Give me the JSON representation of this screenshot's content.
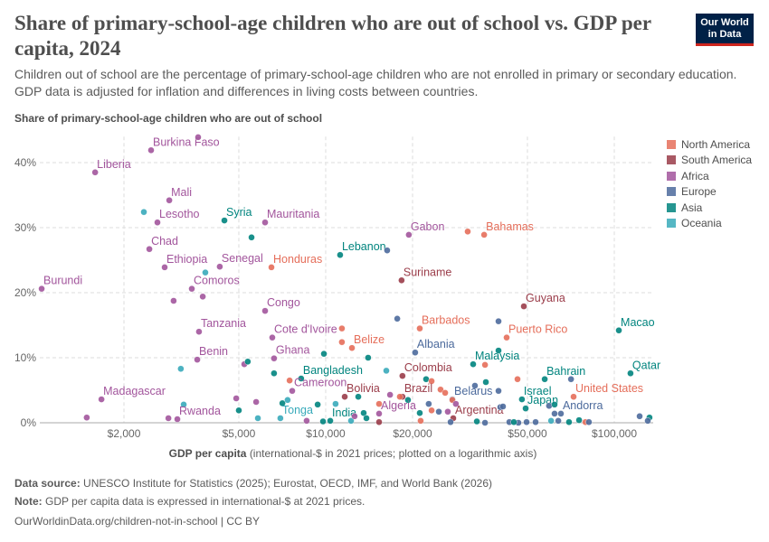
{
  "header": {
    "title": "Share of primary-school-age children who are out of school vs. GDP per capita, 2024",
    "subtitle": "Children out of school are the percentage of primary-school-age children who are not enrolled in primary or secondary education. GDP data is adjusted for inflation and differences in living costs between countries.",
    "logo": "Our World in Data"
  },
  "footer": {
    "source_label": "Data source:",
    "source": "UNESCO Institute for Statistics (2025); Eurostat, OECD, IMF, and World Bank (2026)",
    "note_label": "Note:",
    "note": "GDP per capita data is expressed in international-$ at 2021 prices.",
    "url": "OurWorldinData.org/children-not-in-school | CC BY"
  },
  "chart_data": {
    "type": "scatter",
    "title": "Share of primary-school-age children who are out of school vs. GDP per capita, 2024",
    "ylabel": "Share of primary-school-age children who are out of school",
    "xlabel_bold": "GDP per capita",
    "xlabel_rest": "(international-$ in 2021 prices; plotted on a logarithmic axis)",
    "xscale": "log",
    "xlim": [
      1000,
      135000
    ],
    "ylim": [
      0,
      44
    ],
    "xticks": [
      {
        "v": 2000,
        "l": "$2,000"
      },
      {
        "v": 5000,
        "l": "$5,000"
      },
      {
        "v": 10000,
        "l": "$10,000"
      },
      {
        "v": 20000,
        "l": "$20,000"
      },
      {
        "v": 50000,
        "l": "$50,000"
      },
      {
        "v": 100000,
        "l": "$100,000"
      }
    ],
    "yticks": [
      {
        "v": 0,
        "l": "0%"
      },
      {
        "v": 10,
        "l": "10%"
      },
      {
        "v": 20,
        "l": "20%"
      },
      {
        "v": 30,
        "l": "30%"
      },
      {
        "v": 40,
        "l": "40%"
      }
    ],
    "grid": true,
    "legend_position": "right",
    "regions": [
      {
        "name": "North America",
        "color": "#e56e5a"
      },
      {
        "name": "South America",
        "color": "#9a3c49"
      },
      {
        "name": "Africa",
        "color": "#a2559c"
      },
      {
        "name": "Europe",
        "color": "#4c6a9c"
      },
      {
        "name": "Asia",
        "color": "#00847e"
      },
      {
        "name": "Oceania",
        "color": "#38aaba"
      }
    ],
    "points": [
      {
        "label": "Burkina Faso",
        "region": "Africa",
        "gdp": 2483,
        "share": 41.9
      },
      {
        "label": "",
        "region": "Africa",
        "gdp": 3614,
        "share": 43.9
      },
      {
        "label": "Liberia",
        "region": "Africa",
        "gdp": 1589,
        "share": 38.5
      },
      {
        "label": "Mali",
        "region": "Africa",
        "gdp": 2871,
        "share": 34.2
      },
      {
        "label": "Lesotho",
        "region": "Africa",
        "gdp": 2612,
        "share": 30.8
      },
      {
        "label": "",
        "region": "Oceania",
        "gdp": 2344,
        "share": 32.4
      },
      {
        "label": "Syria",
        "region": "Asia",
        "gdp": 4457,
        "share": 31.1
      },
      {
        "label": "Mauritania",
        "region": "Africa",
        "gdp": 6166,
        "share": 30.8
      },
      {
        "label": "",
        "region": "Asia",
        "gdp": 5534,
        "share": 28.5
      },
      {
        "label": "Chad",
        "region": "Africa",
        "gdp": 2449,
        "share": 26.7
      },
      {
        "label": "Ethiopia",
        "region": "Africa",
        "gdp": 2767,
        "share": 23.9
      },
      {
        "label": "Senegal",
        "region": "Africa",
        "gdp": 4295,
        "share": 24.0
      },
      {
        "label": "Honduras",
        "region": "North America",
        "gdp": 6486,
        "share": 23.9
      },
      {
        "label": "",
        "region": "Oceania",
        "gdp": 3828,
        "share": 23.1
      },
      {
        "label": "Burundi",
        "region": "Africa",
        "gdp": 1037,
        "share": 20.6
      },
      {
        "label": "Comoros",
        "region": "Africa",
        "gdp": 3436,
        "share": 20.6
      },
      {
        "label": "",
        "region": "Africa",
        "gdp": 2972,
        "share": 18.75
      },
      {
        "label": "",
        "region": "Africa",
        "gdp": 3750,
        "share": 19.4
      },
      {
        "label": "Congo",
        "region": "Africa",
        "gdp": 6166,
        "share": 17.2
      },
      {
        "label": "Tanzania",
        "region": "Africa",
        "gdp": 3639,
        "share": 14.0
      },
      {
        "label": "Cote d'Ivoire",
        "region": "Africa",
        "gdp": 6531,
        "share": 13.1
      },
      {
        "label": "Benin",
        "region": "Africa",
        "gdp": 3589,
        "share": 9.7
      },
      {
        "label": "Ghana",
        "region": "Africa",
        "gdp": 6622,
        "share": 9.9
      },
      {
        "label": "",
        "region": "Oceania",
        "gdp": 3148,
        "share": 8.3
      },
      {
        "label": "",
        "region": "Africa",
        "gdp": 5224,
        "share": 9.0
      },
      {
        "label": "",
        "region": "Asia",
        "gdp": 5370,
        "share": 9.4
      },
      {
        "label": "",
        "region": "Asia",
        "gdp": 6622,
        "share": 7.6
      },
      {
        "label": "",
        "region": "North America",
        "gdp": 7499,
        "share": 6.5
      },
      {
        "label": "Bangladesh",
        "region": "Asia",
        "gdp": 8222,
        "share": 6.8
      },
      {
        "label": "Cameroon",
        "region": "Africa",
        "gdp": 7656,
        "share": 4.9
      },
      {
        "label": "",
        "region": "Africa",
        "gdp": 4898,
        "share": 3.75
      },
      {
        "label": "",
        "region": "Africa",
        "gdp": 5741,
        "share": 3.2
      },
      {
        "label": "",
        "region": "Asia",
        "gdp": 7079,
        "share": 3.0
      },
      {
        "label": "",
        "region": "Oceania",
        "gdp": 7379,
        "share": 3.5
      },
      {
        "label": "Madagascar",
        "region": "Africa",
        "gdp": 1671,
        "share": 3.6
      },
      {
        "label": "",
        "region": "Africa",
        "gdp": 1486,
        "share": 0.8
      },
      {
        "label": "",
        "region": "Oceania",
        "gdp": 3221,
        "share": 2.8
      },
      {
        "label": "Rwanda",
        "region": "Africa",
        "gdp": 3062,
        "share": 0.55
      },
      {
        "label": "",
        "region": "Africa",
        "gdp": 2851,
        "share": 0.7
      },
      {
        "label": "",
        "region": "Asia",
        "gdp": 5000,
        "share": 1.9
      },
      {
        "label": "",
        "region": "Oceania",
        "gdp": 5821,
        "share": 0.7
      },
      {
        "label": "Tonga",
        "region": "Oceania",
        "gdp": 6966,
        "share": 0.7
      },
      {
        "label": "",
        "region": "Africa",
        "gdp": 8590,
        "share": 0.3
      },
      {
        "label": "Macao",
        "region": "Asia",
        "gdp": 103700,
        "share": 14.2
      },
      {
        "label": "Qatar",
        "region": "Asia",
        "gdp": 113800,
        "share": 7.6
      },
      {
        "label": "Guyana",
        "region": "South America",
        "gdp": 48600,
        "share": 17.9
      },
      {
        "label": "Puerto Rico",
        "region": "North America",
        "gdp": 42360,
        "share": 13.1
      },
      {
        "label": "",
        "region": "Europe",
        "gdp": 39700,
        "share": 15.6
      },
      {
        "label": "Barbados",
        "region": "North America",
        "gdp": 21180,
        "share": 14.5
      },
      {
        "label": "",
        "region": "Europe",
        "gdp": 17700,
        "share": 16.0
      },
      {
        "label": "Albania",
        "region": "Europe",
        "gdp": 20420,
        "share": 10.8
      },
      {
        "label": "Belize",
        "region": "North America",
        "gdp": 12330,
        "share": 11.5
      },
      {
        "label": "",
        "region": "North America",
        "gdp": 11380,
        "share": 14.5
      },
      {
        "label": "",
        "region": "North America",
        "gdp": 11380,
        "share": 12.4
      },
      {
        "label": "",
        "region": "Asia",
        "gdp": 14030,
        "share": 10.0
      },
      {
        "label": "",
        "region": "Asia",
        "gdp": 9860,
        "share": 10.6
      },
      {
        "label": "Malaysia",
        "region": "Asia",
        "gdp": 32430,
        "share": 9.0
      },
      {
        "label": "",
        "region": "North America",
        "gdp": 35650,
        "share": 8.9
      },
      {
        "label": "",
        "region": "Asia",
        "gdp": 39700,
        "share": 11.1
      },
      {
        "label": "Colombia",
        "region": "South America",
        "gdp": 18450,
        "share": 7.2
      },
      {
        "label": "",
        "region": "Oceania",
        "gdp": 16220,
        "share": 8.0
      },
      {
        "label": "Bahrain",
        "region": "Asia",
        "gdp": 57400,
        "share": 6.7
      },
      {
        "label": "",
        "region": "Europe",
        "gdp": 70800,
        "share": 6.7
      },
      {
        "label": "",
        "region": "North America",
        "gdp": 46200,
        "share": 6.7
      },
      {
        "label": "",
        "region": "Asia",
        "gdp": 35890,
        "share": 6.25
      },
      {
        "label": "",
        "region": "Europe",
        "gdp": 32890,
        "share": 5.7
      },
      {
        "label": "",
        "region": "Asia",
        "gdp": 22280,
        "share": 6.7
      },
      {
        "label": "",
        "region": "North America",
        "gdp": 23280,
        "share": 6.4
      },
      {
        "label": "Israel",
        "region": "Asia",
        "gdp": 47860,
        "share": 3.6
      },
      {
        "label": "United States",
        "region": "North America",
        "gdp": 72270,
        "share": 4.0
      },
      {
        "label": "",
        "region": "Europe",
        "gdp": 39700,
        "share": 4.9
      },
      {
        "label": "Belarus",
        "region": "Europe",
        "gdp": 27480,
        "share": 3.6
      },
      {
        "label": "",
        "region": "North America",
        "gdp": 25000,
        "share": 5.1
      },
      {
        "label": "",
        "region": "North America",
        "gdp": 25940,
        "share": 4.6
      },
      {
        "label": "Brazil",
        "region": "South America",
        "gdp": 18450,
        "share": 4.0
      },
      {
        "label": "",
        "region": "North America",
        "gdp": 18070,
        "share": 4.0
      },
      {
        "label": "",
        "region": "Africa",
        "gdp": 16710,
        "share": 4.3
      },
      {
        "label": "Bolivia",
        "region": "South America",
        "gdp": 11640,
        "share": 4.0
      },
      {
        "label": "",
        "region": "Asia",
        "gdp": 12970,
        "share": 4.0
      },
      {
        "label": "",
        "region": "Asia",
        "gdp": 19280,
        "share": 3.5
      },
      {
        "label": "",
        "region": "North America",
        "gdp": 27480,
        "share": 3.5
      },
      {
        "label": "Argentina",
        "region": "South America",
        "gdp": 27670,
        "share": 0.7
      },
      {
        "label": "",
        "region": "Africa",
        "gdp": 28250,
        "share": 2.9
      },
      {
        "label": "",
        "region": "Europe",
        "gdp": 22750,
        "share": 2.9
      },
      {
        "label": "",
        "region": "North America",
        "gdp": 23280,
        "share": 1.9
      },
      {
        "label": "",
        "region": "Europe",
        "gdp": 24660,
        "share": 1.7
      },
      {
        "label": "",
        "region": "Africa",
        "gdp": 26490,
        "share": 1.7
      },
      {
        "label": "Algeria",
        "region": "Africa",
        "gdp": 15310,
        "share": 1.4
      },
      {
        "label": "",
        "region": "North America",
        "gdp": 15310,
        "share": 2.9
      },
      {
        "label": "India",
        "region": "Asia",
        "gdp": 10370,
        "share": 0.3
      },
      {
        "label": "",
        "region": "Asia",
        "gdp": 9790,
        "share": 0.2
      },
      {
        "label": "",
        "region": "Oceania",
        "gdp": 10820,
        "share": 2.9
      },
      {
        "label": "",
        "region": "Asia",
        "gdp": 9380,
        "share": 2.8
      },
      {
        "label": "",
        "region": "Oceania",
        "gdp": 12240,
        "share": 0.3
      },
      {
        "label": "",
        "region": "Africa",
        "gdp": 12590,
        "share": 1.0
      },
      {
        "label": "",
        "region": "Asia",
        "gdp": 13540,
        "share": 1.5
      },
      {
        "label": "",
        "region": "Asia",
        "gdp": 13840,
        "share": 0.7
      },
      {
        "label": "",
        "region": "South America",
        "gdp": 15310,
        "share": 0.1
      },
      {
        "label": "",
        "region": "North America",
        "gdp": 21330,
        "share": 0.3
      },
      {
        "label": "",
        "region": "Asia",
        "gdp": 21180,
        "share": 1.5
      },
      {
        "label": "",
        "region": "Europe",
        "gdp": 27080,
        "share": 0.1
      },
      {
        "label": "",
        "region": "Asia",
        "gdp": 33400,
        "share": 0.2
      },
      {
        "label": "",
        "region": "Europe",
        "gdp": 35650,
        "share": 0.0
      },
      {
        "label": "Japan",
        "region": "Asia",
        "gdp": 49300,
        "share": 2.2
      },
      {
        "label": "",
        "region": "Europe",
        "gdp": 40270,
        "share": 2.4
      },
      {
        "label": "",
        "region": "Europe",
        "gdp": 41150,
        "share": 2.5
      },
      {
        "label": "",
        "region": "Europe",
        "gdp": 43280,
        "share": 0.1
      },
      {
        "label": "",
        "region": "Europe",
        "gdp": 46530,
        "share": 0.0
      },
      {
        "label": "",
        "region": "Europe",
        "gdp": 49660,
        "share": 0.1
      },
      {
        "label": "",
        "region": "Europe",
        "gdp": 53370,
        "share": 0.1
      },
      {
        "label": "",
        "region": "Asia",
        "gdp": 44870,
        "share": 0.1
      },
      {
        "label": "",
        "region": "Europe",
        "gdp": 59430,
        "share": 2.6
      },
      {
        "label": "",
        "region": "Asia",
        "gdp": 62090,
        "share": 2.8
      },
      {
        "label": "",
        "region": "Europe",
        "gdp": 62090,
        "share": 1.4
      },
      {
        "label": "Andorra",
        "region": "Europe",
        "gdp": 65310,
        "share": 1.4
      },
      {
        "label": "",
        "region": "Oceania",
        "gdp": 60390,
        "share": 0.3
      },
      {
        "label": "",
        "region": "Europe",
        "gdp": 63970,
        "share": 0.3
      },
      {
        "label": "",
        "region": "Asia",
        "gdp": 69680,
        "share": 0.1
      },
      {
        "label": "",
        "region": "North America",
        "gdp": 79430,
        "share": 0.1
      },
      {
        "label": "",
        "region": "Europe",
        "gdp": 81660,
        "share": 0.1
      },
      {
        "label": "",
        "region": "Asia",
        "gdp": 75510,
        "share": 0.4
      },
      {
        "label": "",
        "region": "Europe",
        "gdp": 122400,
        "share": 1.0
      },
      {
        "label": "",
        "region": "Asia",
        "gdp": 132400,
        "share": 0.8
      },
      {
        "label": "",
        "region": "Europe",
        "gdp": 130600,
        "share": 0.3
      },
      {
        "label": "Bahamas",
        "region": "North America",
        "gdp": 35400,
        "share": 28.9
      },
      {
        "label": "",
        "region": "North America",
        "gdp": 31050,
        "share": 29.4
      },
      {
        "label": "Gabon",
        "region": "Africa",
        "gdp": 19410,
        "share": 28.9
      },
      {
        "label": "Lebanon",
        "region": "Asia",
        "gdp": 11220,
        "share": 25.8
      },
      {
        "label": "",
        "region": "Europe",
        "gdp": 16330,
        "share": 26.5
      },
      {
        "label": "Suriname",
        "region": "South America",
        "gdp": 18320,
        "share": 21.9
      }
    ]
  }
}
